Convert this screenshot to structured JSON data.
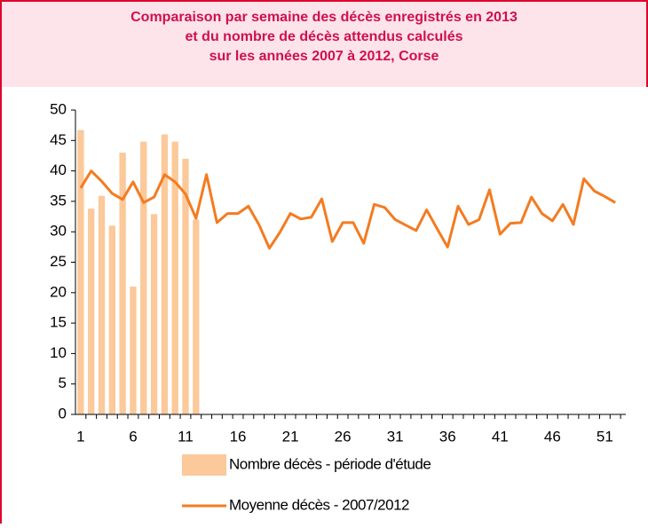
{
  "chart_data": {
    "type": "bar",
    "title": [
      "Comparaison par semaine des décès enregistrés en 2013",
      "et du nombre de décès attendus calculés",
      "sur les années 2007 à 2012, Corse"
    ],
    "x": [
      1,
      2,
      3,
      4,
      5,
      6,
      7,
      8,
      9,
      10,
      11,
      12,
      13,
      14,
      15,
      16,
      17,
      18,
      19,
      20,
      21,
      22,
      23,
      24,
      25,
      26,
      27,
      28,
      29,
      30,
      31,
      32,
      33,
      34,
      35,
      36,
      37,
      38,
      39,
      40,
      41,
      42,
      43,
      44,
      45,
      46,
      47,
      48,
      49,
      50,
      51,
      52
    ],
    "series": [
      {
        "name": "Nombre décès - période d'étude",
        "type": "bar",
        "color": "#fbc99a",
        "values": [
          46.7,
          33.8,
          35.9,
          31,
          43,
          21,
          44.8,
          32.9,
          46,
          44.8,
          42,
          32,
          null,
          null,
          null,
          null,
          null,
          null,
          null,
          null,
          null,
          null,
          null,
          null,
          null,
          null,
          null,
          null,
          null,
          null,
          null,
          null,
          null,
          null,
          null,
          null,
          null,
          null,
          null,
          null,
          null,
          null,
          null,
          null,
          null,
          null,
          null,
          null,
          null,
          null,
          null,
          null
        ]
      },
      {
        "name": "Moyenne décès - 2007/2012",
        "type": "line",
        "color": "#f47b20",
        "values": [
          37.2,
          40,
          38.3,
          36.3,
          35.3,
          38.2,
          34.8,
          35.7,
          39.4,
          38.2,
          36.2,
          32.2,
          39.4,
          31.5,
          33,
          33,
          34.2,
          31.2,
          27.3,
          29.9,
          33,
          32.1,
          32.4,
          35.4,
          28.4,
          31.5,
          31.5,
          28.1,
          34.5,
          34,
          32,
          31.1,
          30.2,
          33.6,
          30.5,
          27.5,
          34.2,
          31.2,
          32,
          36.9,
          29.6,
          31.4,
          31.5,
          35.7,
          33,
          31.8,
          34.5,
          31.2,
          38.7,
          36.7,
          35.8,
          34.8
        ]
      }
    ],
    "xlim": [
      0.5,
      53
    ],
    "xticks": [
      1,
      6,
      11,
      16,
      21,
      26,
      31,
      36,
      41,
      46,
      51
    ],
    "ylim": [
      0,
      50
    ],
    "yticks": [
      0,
      5,
      10,
      15,
      20,
      25,
      30,
      35,
      40,
      45,
      50
    ],
    "legend": "bottom"
  }
}
